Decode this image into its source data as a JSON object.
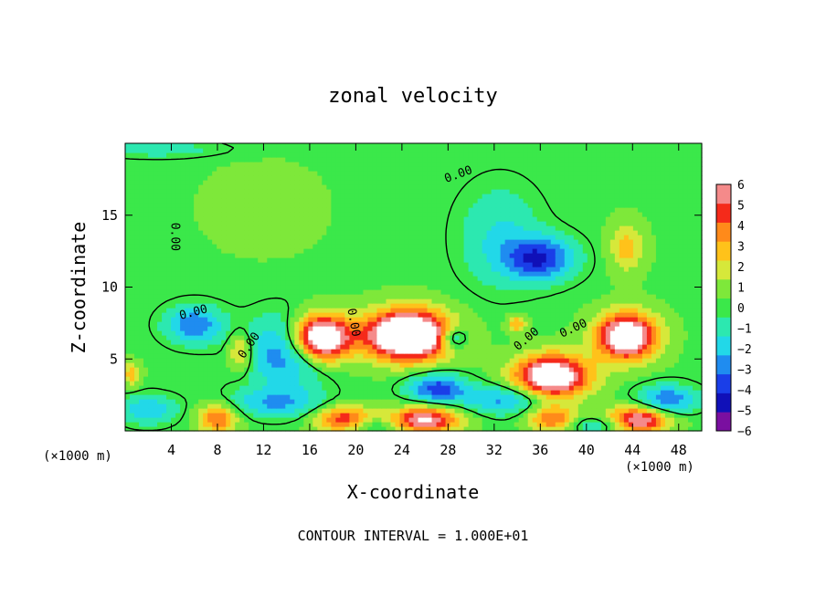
{
  "chart_data": {
    "type": "heatmap",
    "title": "zonal velocity",
    "xlabel": "X-coordinate",
    "ylabel": "Z-coordinate",
    "x_unit_label": "(×1000 m)",
    "xlim": [
      0,
      50
    ],
    "ylim": [
      0,
      20
    ],
    "x_ticks": [
      4,
      8,
      12,
      16,
      20,
      24,
      28,
      32,
      36,
      40,
      44,
      48
    ],
    "y_ticks": [
      5,
      10,
      15
    ],
    "colorbar": {
      "min": -6,
      "max": 6,
      "ticks": [
        6,
        5,
        4,
        3,
        2,
        1,
        0,
        -1,
        -2,
        -3,
        -4,
        -5,
        -6
      ],
      "colors": [
        "#7a0fa0",
        "#1010b8",
        "#1a3ee8",
        "#1f8cf0",
        "#22d8e8",
        "#2ce8b0",
        "#3be84a",
        "#7ee83a",
        "#d6e83a",
        "#ffc21a",
        "#ff8a1a",
        "#f52a1a",
        "#f58a8a"
      ]
    },
    "contour_label": "0.00",
    "footer": "CONTOUR INTERVAL = 1.000E+01",
    "field": {
      "base": 0.3,
      "features": [
        {
          "x": 17,
          "z": 6.5,
          "sx": 2.5,
          "sz": 1.6,
          "v": 9
        },
        {
          "x": 24.5,
          "z": 6.7,
          "sx": 3.6,
          "sz": 1.7,
          "v": 10
        },
        {
          "x": 43.5,
          "z": 6.6,
          "sx": 2.6,
          "sz": 1.6,
          "v": 8
        },
        {
          "x": 37,
          "z": 3.8,
          "sx": 3.2,
          "sz": 1.5,
          "v": 8
        },
        {
          "x": 19,
          "z": 0.8,
          "sx": 2.4,
          "sz": 0.9,
          "v": 5
        },
        {
          "x": 26,
          "z": 0.8,
          "sx": 3.0,
          "sz": 0.9,
          "v": 6
        },
        {
          "x": 8,
          "z": 0.9,
          "sx": 1.7,
          "sz": 1.0,
          "v": 4
        },
        {
          "x": 44.5,
          "z": 0.8,
          "sx": 2.6,
          "sz": 0.9,
          "v": 6
        },
        {
          "x": 37,
          "z": 0.9,
          "sx": 2.0,
          "sz": 0.9,
          "v": 4
        },
        {
          "x": 10,
          "z": 5.5,
          "sx": 1.0,
          "sz": 1.3,
          "v": 3
        },
        {
          "x": 43.5,
          "z": 12.8,
          "sx": 1.5,
          "sz": 1.7,
          "v": 2.5
        },
        {
          "x": 34,
          "z": 7.5,
          "sx": 0.8,
          "sz": 0.6,
          "v": 3
        },
        {
          "x": 36,
          "z": 12,
          "sx": 3.0,
          "sz": 1.5,
          "v": -4.3
        },
        {
          "x": 32.5,
          "z": 13.5,
          "sx": 3.5,
          "sz": 3.5,
          "v": -1.8
        },
        {
          "x": 6,
          "z": 7.4,
          "sx": 2.5,
          "sz": 1.3,
          "v": -3.5
        },
        {
          "x": 14,
          "z": 5.5,
          "sx": 3.5,
          "sz": 2.5,
          "v": -3.5
        },
        {
          "x": 28.5,
          "z": 6.5,
          "sx": 1.2,
          "sz": 0.8,
          "v": -3.5
        },
        {
          "x": 27,
          "z": 3.0,
          "sx": 2.5,
          "sz": 1.0,
          "v": -4
        },
        {
          "x": 33,
          "z": 2.2,
          "sx": 4.0,
          "sz": 1.0,
          "v": -3
        },
        {
          "x": 13,
          "z": 2.0,
          "sx": 4.0,
          "sz": 1.0,
          "v": -2.5
        },
        {
          "x": 2,
          "z": 1.5,
          "sx": 2.5,
          "sz": 1.0,
          "v": -2.5
        },
        {
          "x": 47,
          "z": 2.2,
          "sx": 2.5,
          "sz": 1.0,
          "v": -3.5
        },
        {
          "x": 21,
          "z": 0.4,
          "sx": 2.5,
          "sz": 0.6,
          "v": -2
        },
        {
          "x": 41,
          "z": 0.4,
          "sx": 2.5,
          "sz": 0.6,
          "v": -2
        },
        {
          "x": 3,
          "z": 19.6,
          "sx": 6.0,
          "sz": 0.6,
          "v": -1.2
        },
        {
          "x": 12,
          "z": 15.5,
          "sx": 5.0,
          "sz": 3.0,
          "v": 0.7
        },
        {
          "x": 0.5,
          "z": 4.0,
          "sx": 0.8,
          "sz": 0.8,
          "v": 2.5
        }
      ]
    }
  }
}
